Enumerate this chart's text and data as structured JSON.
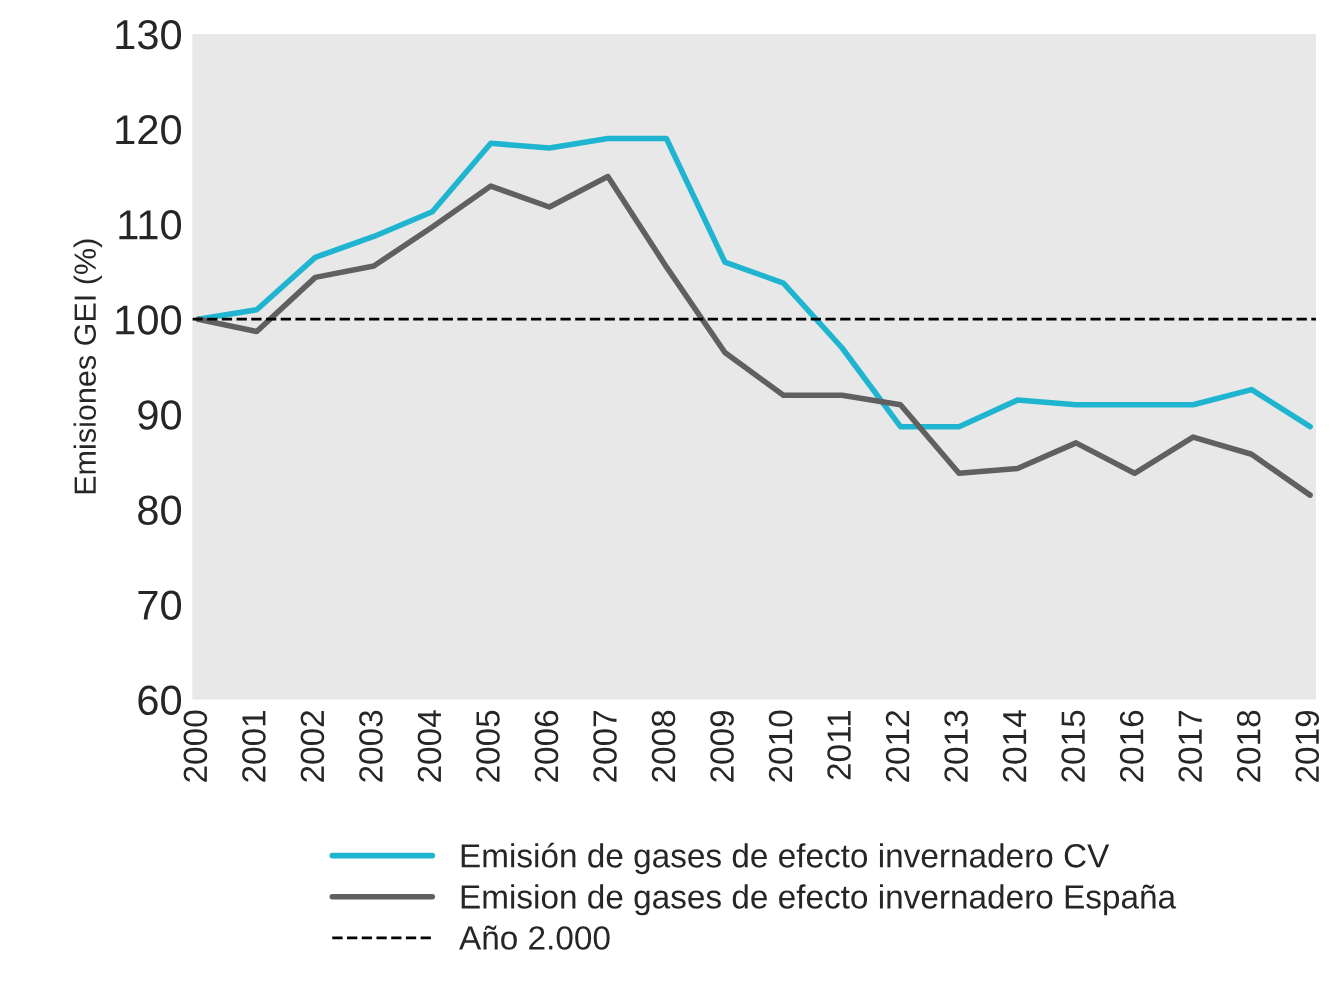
{
  "chart_data": {
    "type": "line",
    "ylabel": "Emisiones GEI (%)",
    "categories": [
      "2000",
      "2001",
      "2002",
      "2003",
      "2004",
      "2005",
      "2006",
      "2007",
      "2008",
      "2009",
      "2010",
      "2011",
      "2012",
      "2013",
      "2014",
      "2015",
      "2016",
      "2017",
      "2018",
      "2019"
    ],
    "series": [
      {
        "name": "Emisión de gases de efecto invernadero CV",
        "color": "#1fb5d0",
        "values": [
          100,
          101,
          106.5,
          108.7,
          111.3,
          118.5,
          118,
          119,
          119,
          106,
          103.8,
          97,
          88.7,
          88.7,
          91.5,
          91,
          91,
          91,
          92.6,
          88.7
        ]
      },
      {
        "name": "Emision de gases de efecto invernadero España",
        "color": "#606060",
        "values": [
          100,
          98.7,
          104.4,
          105.6,
          109.7,
          114,
          111.8,
          115,
          105.5,
          96.5,
          92,
          92,
          91,
          83.8,
          84.3,
          87,
          83.8,
          87.6,
          85.8,
          81.5
        ]
      }
    ],
    "ref_lines": [
      {
        "axis": "y",
        "value": 100,
        "label": "Año 2.000",
        "color": "#000000",
        "line_style": "dashed"
      }
    ],
    "ylim": [
      60,
      130
    ],
    "yticks": [
      60,
      70,
      80,
      90,
      100,
      110,
      120,
      130
    ],
    "grid": false,
    "legend": "bottom",
    "marker": "none",
    "line_style": "solid"
  }
}
